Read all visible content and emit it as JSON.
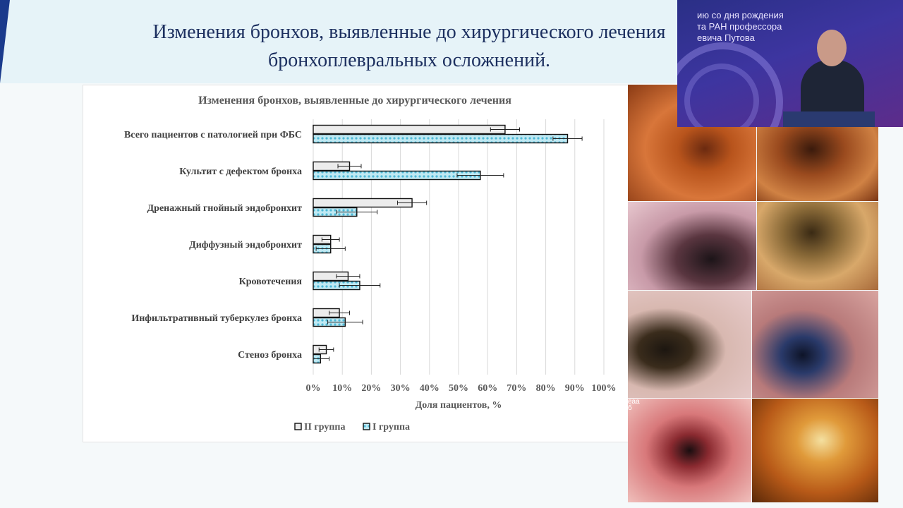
{
  "slide": {
    "title_line1": "Изменения бронхов, выявленные до хирургического лечения",
    "title_line2": "бронхоплевральных осложнений."
  },
  "video_inset": {
    "line1": "ию со дня рождения",
    "line2": "та РАН профессора",
    "line3": "евича Путова"
  },
  "photo_label": "еаа\nб",
  "colors": {
    "group2_fill": "#ececec",
    "group1_fill": "#7fd3e6",
    "bar_stroke": "#111111",
    "grid": "#d9d9d9",
    "title_text": "#1c2f5f"
  },
  "chart_data": {
    "type": "bar",
    "orientation": "horizontal",
    "title": "Изменения бронхов, выявленные до хирургического лечения",
    "xlabel": "Доля пациентов, %",
    "ylabel": "",
    "xlim": [
      0,
      100
    ],
    "x_ticks": [
      "0%",
      "10%",
      "20%",
      "30%",
      "40%",
      "50%",
      "60%",
      "70%",
      "80%",
      "90%",
      "100%"
    ],
    "grid": true,
    "legend_position": "bottom",
    "categories": [
      "Всего пациентов с патологией при ФБС",
      "Культит с дефектом бронха",
      "Дренажный гнойный эндобронхит",
      "Диффузный эндобронхит",
      "Кровотечения",
      "Инфильтративный туберкулез бронха",
      "Стеноз бронха"
    ],
    "series": [
      {
        "name": "II группа",
        "values": [
          66,
          12.5,
          34,
          6,
          12,
          9,
          4.5
        ],
        "errors": [
          5,
          4,
          5,
          3,
          4,
          3.5,
          2.5
        ]
      },
      {
        "name": "I группа",
        "values": [
          87.5,
          57.5,
          15,
          6,
          16,
          11,
          2.5
        ],
        "errors": [
          5,
          8,
          7,
          5,
          7,
          6,
          3
        ]
      }
    ]
  }
}
